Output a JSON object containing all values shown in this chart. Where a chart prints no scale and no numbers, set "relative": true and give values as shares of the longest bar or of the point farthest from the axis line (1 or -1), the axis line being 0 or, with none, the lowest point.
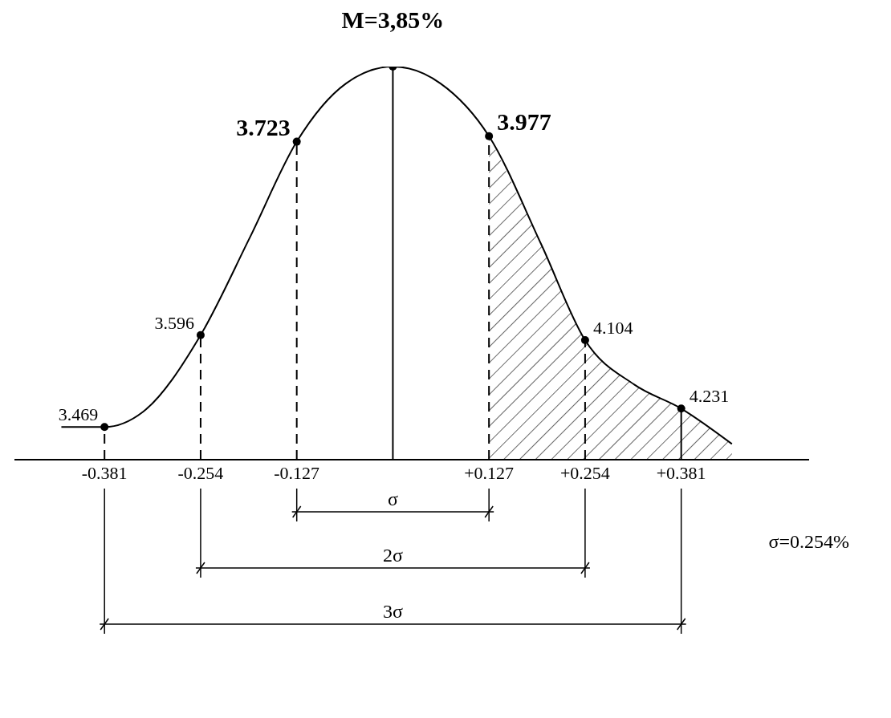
{
  "chart_data": {
    "type": "line",
    "title": "M=3,85%",
    "relative": true,
    "xlim": [
      -0.5,
      0.55
    ],
    "xticks": [
      {
        "value": -0.381,
        "label": "-0.381"
      },
      {
        "value": -0.254,
        "label": "-0.254"
      },
      {
        "value": -0.127,
        "label": "-0.127"
      },
      {
        "value": 0.127,
        "label": "+0.127"
      },
      {
        "value": 0.254,
        "label": "+0.254"
      },
      {
        "value": 0.381,
        "label": "+0.381"
      }
    ],
    "series": [
      {
        "color": "#000000",
        "x": [
          -0.438,
          -0.381,
          -0.33,
          -0.254,
          -0.189,
          -0.127,
          -0.062,
          0,
          0.063,
          0.127,
          0.196,
          0.254,
          0.319,
          0.381,
          0.448
        ],
        "values": [
          0.083,
          0.083,
          0.122,
          0.317,
          0.565,
          0.809,
          0.957,
          1,
          0.957,
          0.823,
          0.548,
          0.304,
          0.191,
          0.13,
          0.04
        ]
      },
      {
        "type": "area",
        "color": "#000000",
        "x": [
          0.127,
          0.196,
          0.254,
          0.319,
          0.381,
          0.448
        ],
        "values": [
          0.823,
          0.548,
          0.304,
          0.191,
          0.13,
          0.04
        ]
      },
      {
        "type": "scatter",
        "color": "#000000",
        "marker": "circle",
        "x": [
          -0.381,
          -0.254,
          -0.127,
          0,
          0.127,
          0.254,
          0.381
        ],
        "values": [
          0.083,
          0.317,
          0.809,
          1,
          0.823,
          0.304,
          0.13
        ]
      }
    ],
    "ref_lines": [
      {
        "axis": "x",
        "value": -0.381,
        "line_style": "dashed"
      },
      {
        "axis": "x",
        "value": -0.254,
        "line_style": "dashed"
      },
      {
        "axis": "x",
        "value": -0.127,
        "line_style": "dashed"
      },
      {
        "axis": "x",
        "value": 0,
        "line_style": "solid"
      },
      {
        "axis": "x",
        "value": 0.127,
        "line_style": "dashed"
      },
      {
        "axis": "x",
        "value": 0.254,
        "line_style": "dashed"
      },
      {
        "axis": "x",
        "value": 0.381,
        "line_style": "solid"
      }
    ],
    "annotations": [
      "σ",
      "2σ",
      "3σ",
      "σ=0.254%",
      {
        "text": "3.469",
        "x": -0.381,
        "y": 0.083
      },
      {
        "text": "3.596",
        "x": -0.254,
        "y": 0.317
      },
      {
        "text": "3.723",
        "x": -0.127,
        "y": 0.809
      },
      {
        "text": "3.977",
        "x": 0.127,
        "y": 0.823
      },
      {
        "text": "4.104",
        "x": 0.254,
        "y": 0.304
      },
      {
        "text": "4.231",
        "x": 0.381,
        "y": 0.13
      }
    ]
  }
}
